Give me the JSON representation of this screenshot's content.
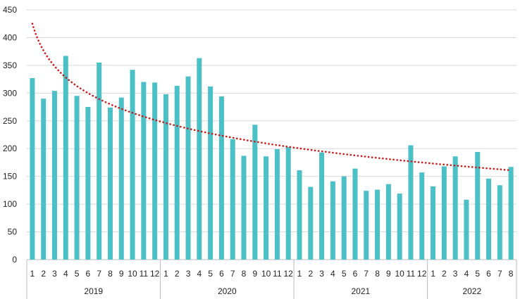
{
  "chart_data": {
    "type": "bar",
    "title": "",
    "xlabel": "",
    "ylabel": "",
    "ylim": [
      0,
      450
    ],
    "yticks": [
      0,
      50,
      100,
      150,
      200,
      250,
      300,
      350,
      400,
      450
    ],
    "grid": true,
    "bar_color": "#4bc0c6",
    "trend_color": "#d01414",
    "groups": [
      {
        "label": "2019",
        "months": [
          "1",
          "2",
          "3",
          "4",
          "5",
          "6",
          "7",
          "8",
          "9",
          "10",
          "11",
          "12"
        ],
        "values": [
          327,
          290,
          304,
          367,
          295,
          275,
          355,
          274,
          292,
          342,
          320,
          319
        ]
      },
      {
        "label": "2020",
        "months": [
          "1",
          "2",
          "3",
          "4",
          "5",
          "6",
          "7",
          "8",
          "9",
          "10",
          "11",
          "12"
        ],
        "values": [
          298,
          313,
          330,
          363,
          312,
          294,
          217,
          187,
          243,
          186,
          199,
          203
        ]
      },
      {
        "label": "2021",
        "months": [
          "1",
          "2",
          "3",
          "4",
          "5",
          "6",
          "7",
          "8",
          "9",
          "10",
          "11",
          "12"
        ],
        "values": [
          161,
          131,
          193,
          141,
          150,
          164,
          124,
          126,
          136,
          119,
          206,
          157
        ]
      },
      {
        "label": "2022",
        "months": [
          "1",
          "2",
          "3",
          "4",
          "5",
          "6",
          "7",
          "8"
        ],
        "values": [
          132,
          168,
          186,
          108,
          194,
          146,
          134,
          167
        ]
      }
    ],
    "trendline": {
      "type": "logarithmic",
      "start": 425,
      "end": 161
    }
  }
}
